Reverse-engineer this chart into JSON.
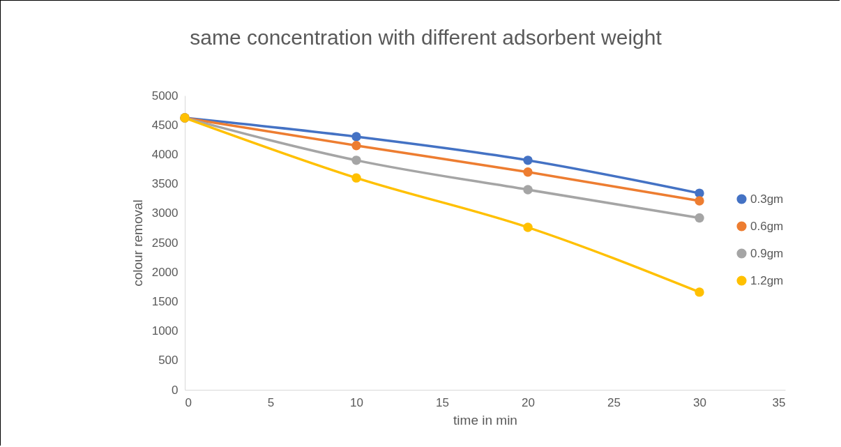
{
  "chart_data": {
    "type": "line",
    "title": "same concentration with different adsorbent weight",
    "xlabel": "time in min",
    "ylabel": "colour removal",
    "x": [
      0,
      10,
      20,
      30
    ],
    "series": [
      {
        "name": "0.3gm",
        "color": "#4472c4",
        "values": [
          4620,
          4300,
          3900,
          3340
        ]
      },
      {
        "name": "0.6gm",
        "color": "#ed7d31",
        "values": [
          4620,
          4150,
          3700,
          3210
        ]
      },
      {
        "name": "0.9gm",
        "color": "#a5a5a5",
        "values": [
          4620,
          3900,
          3400,
          2920
        ]
      },
      {
        "name": "1.2gm",
        "color": "#ffc000",
        "values": [
          4620,
          3600,
          2760,
          1660
        ]
      }
    ],
    "xlim": [
      0,
      35
    ],
    "xticks": [
      0,
      5,
      10,
      15,
      20,
      25,
      30,
      35
    ],
    "ylim": [
      0,
      5000
    ],
    "yticks": [
      0,
      500,
      1000,
      1500,
      2000,
      2500,
      3000,
      3500,
      4000,
      4500,
      5000
    ],
    "grid": false,
    "legend": "right",
    "marker": "circle",
    "line_style": "solid"
  }
}
